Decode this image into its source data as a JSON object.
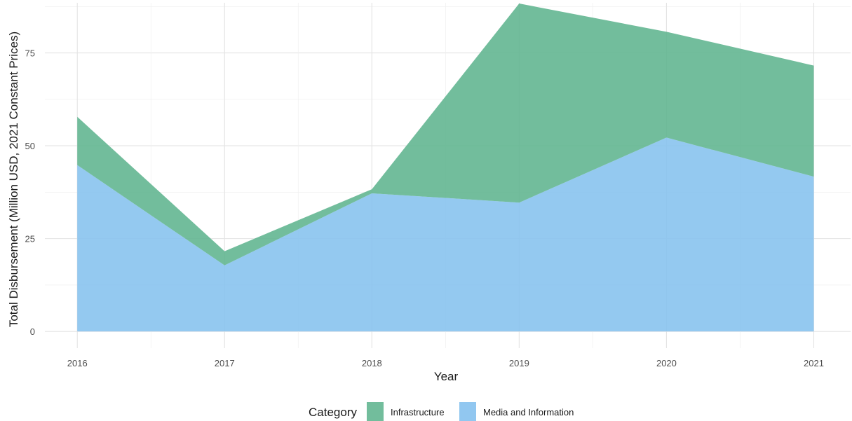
{
  "chart_data": {
    "type": "area",
    "stacked": true,
    "title": "",
    "xlabel": "Year",
    "ylabel": "Total Disbursement (Million USD, 2021 Constant Prices)",
    "x": [
      2016,
      2017,
      2018,
      2019,
      2020,
      2021
    ],
    "x_tick_labels": [
      "2016",
      "2017",
      "2018",
      "2019",
      "2020",
      "2021"
    ],
    "xlim": [
      2015.78,
      2021.25
    ],
    "ylim": [
      -4.5,
      88.5
    ],
    "y_ticks": [
      0,
      25,
      50,
      75
    ],
    "y_tick_labels": [
      "0",
      "25",
      "50",
      "75"
    ],
    "grid": true,
    "legend": {
      "title": "Category",
      "position": "bottom",
      "entries": [
        "Infrastructure",
        "Media and Information"
      ]
    },
    "series": [
      {
        "name": "Media and Information",
        "color": "#85C1EE",
        "values": [
          44.8,
          17.8,
          37.2,
          34.7,
          52.2,
          41.7
        ]
      },
      {
        "name": "Infrastructure",
        "color": "#5FB48E",
        "values": [
          13.0,
          3.8,
          1.1,
          53.6,
          28.5,
          29.9
        ]
      }
    ]
  }
}
